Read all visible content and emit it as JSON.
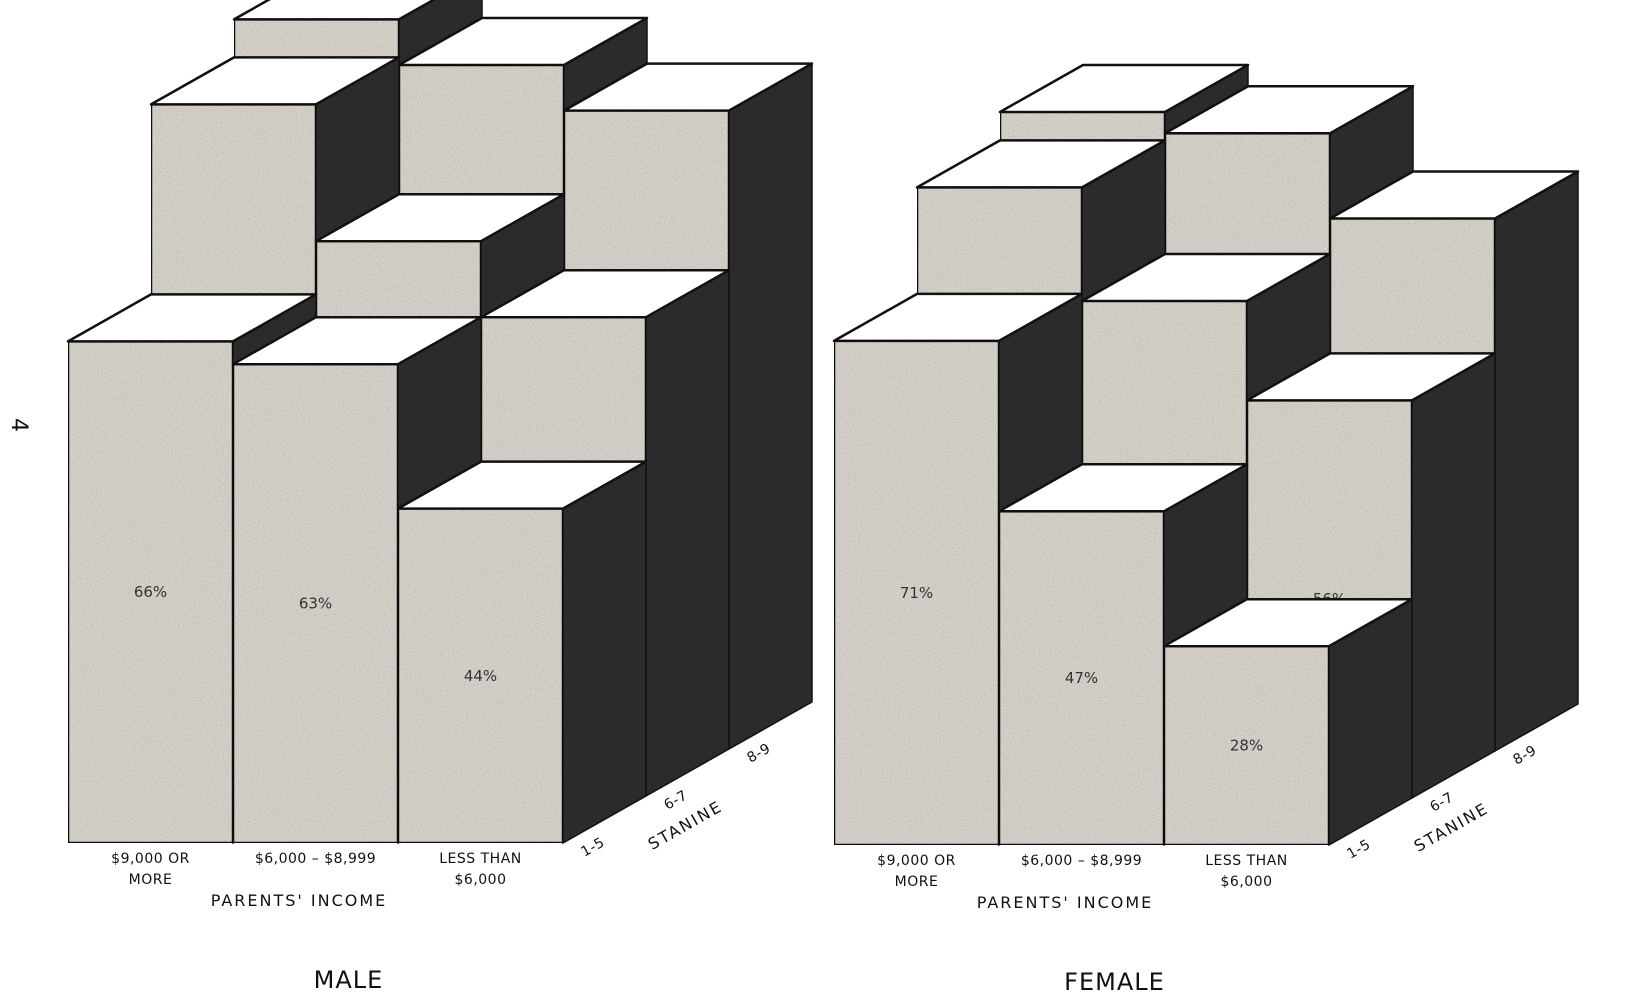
{
  "page_number": "4",
  "chart_data": [
    {
      "type": "bar",
      "title": "MALE",
      "xlabel": "PARENTS' INCOME",
      "zlabel": "STANINE",
      "categories": [
        "$9,000 OR MORE",
        "$6,000 – $8,999",
        "LESS THAN $6,000"
      ],
      "category_lines": [
        [
          "$9,000   OR",
          "MORE"
        ],
        [
          "$6,000  –  $8,999"
        ],
        [
          "LESS   THAN",
          "$6,000"
        ]
      ],
      "depth_categories": [
        "1-5",
        "6-7",
        "8-9"
      ],
      "series": [
        {
          "name": "1-5",
          "values": [
            66,
            63,
            44
          ],
          "labels": [
            "66%",
            "63%",
            "44%"
          ]
        },
        {
          "name": "6-7",
          "values": [
            91,
            73,
            63
          ],
          "labels": [
            "91%",
            "73%",
            "63%"
          ]
        },
        {
          "name": "8-9",
          "values": [
            96,
            90,
            84
          ],
          "labels": [
            "96%",
            "90%",
            "84%"
          ]
        }
      ]
    },
    {
      "type": "bar",
      "title": "FEMALE",
      "xlabel": "PARENTS' INCOME",
      "zlabel": "STANINE",
      "categories": [
        "$9,000 OR MORE",
        "$6,000 – $8,999",
        "LESS THAN $6,000"
      ],
      "category_lines": [
        [
          "$9,000   OR",
          "MORE"
        ],
        [
          "$6,000  –  $8,999"
        ],
        [
          "LESS   THAN",
          "$6,000"
        ]
      ],
      "depth_categories": [
        "1-5",
        "6-7",
        "8-9"
      ],
      "series": [
        {
          "name": "1-5",
          "values": [
            71,
            47,
            28
          ],
          "labels": [
            "71%",
            "47%",
            "28%"
          ]
        },
        {
          "name": "6-7",
          "values": [
            86,
            70,
            56
          ],
          "labels": [
            "86%",
            "70%",
            "56%"
          ]
        },
        {
          "name": "8-9",
          "values": [
            90,
            87,
            75
          ],
          "labels": [
            "90%",
            "87%",
            "75%"
          ]
        }
      ]
    }
  ]
}
